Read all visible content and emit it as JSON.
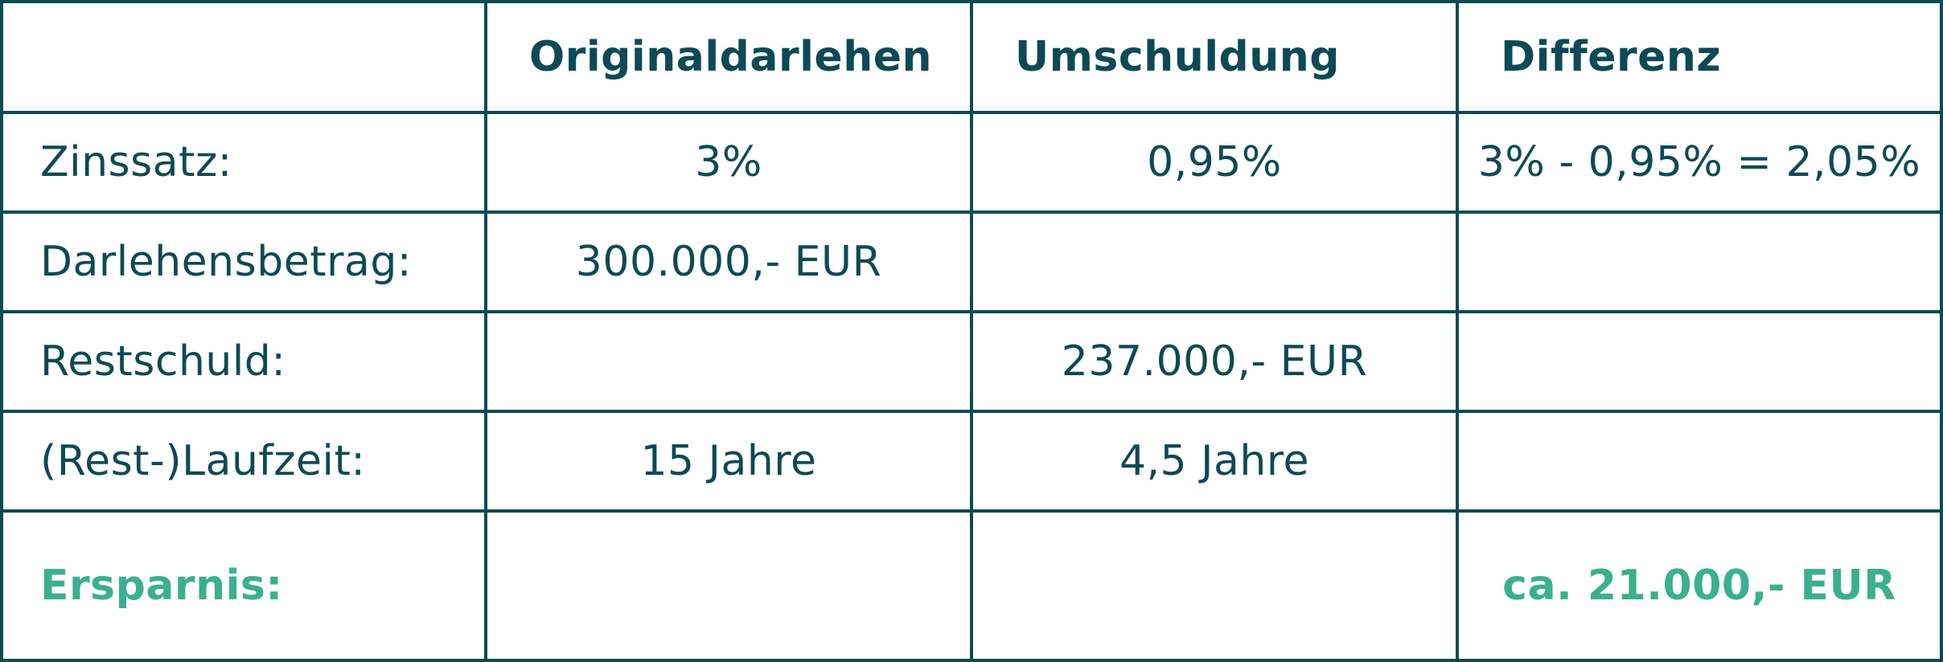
{
  "table": {
    "headers": [
      "",
      "Originaldarlehen",
      "Umschuldung",
      "Differenz"
    ],
    "rows": [
      {
        "label": "Zinssatz:",
        "cells": [
          "3%",
          "0,95%",
          "3% - 0,95% = 2,05%"
        ]
      },
      {
        "label": "Darlehensbetrag:",
        "cells": [
          "300.000,- EUR",
          "",
          ""
        ]
      },
      {
        "label": "Restschuld:",
        "cells": [
          "",
          "237.000,- EUR",
          ""
        ]
      },
      {
        "label": "(Rest-)Laufzeit:",
        "cells": [
          "15 Jahre",
          "4,5 Jahre",
          ""
        ]
      },
      {
        "label": "Ersparnis:",
        "cells": [
          "",
          "",
          "ca. 21.000,- EUR"
        ]
      }
    ]
  },
  "colors": {
    "primary": "#0d4a55",
    "accent": "#3bb08f",
    "background": "#ffffff"
  }
}
